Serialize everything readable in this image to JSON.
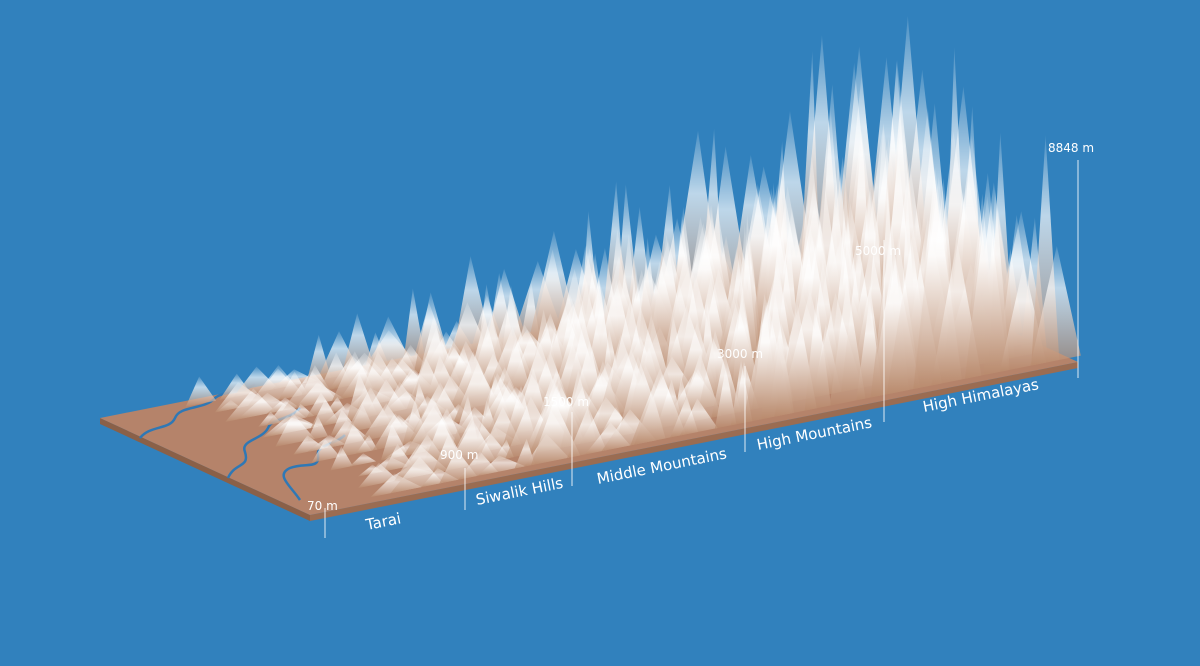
{
  "diagram": {
    "elevations": [
      "70 m",
      "900 m",
      "1500 m",
      "3000 m",
      "5000 m",
      "8848 m"
    ],
    "zones": [
      "Tarai",
      "Siwalik Hills",
      "Middle Mountains",
      "High Mountains",
      "High Himalayas"
    ]
  }
}
